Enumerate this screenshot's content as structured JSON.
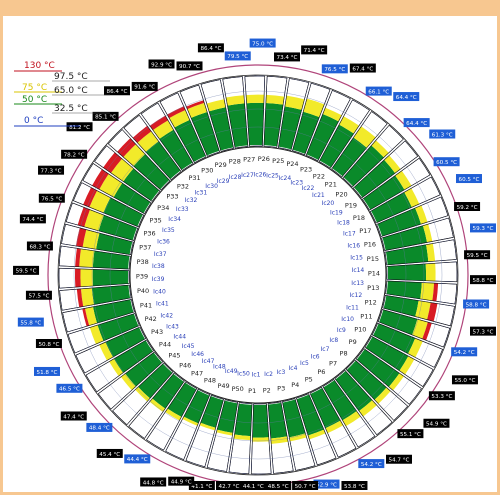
{
  "legend": {
    "scale": [
      {
        "label": "130 °C",
        "color": "#c1121f"
      },
      {
        "label": "75 °C",
        "color": "#d9c400"
      },
      {
        "label": "50 °C",
        "color": "#1a8a1a"
      },
      {
        "label": "0 °C",
        "color": "#1f3fbf"
      }
    ],
    "readouts": [
      "97.5 °C",
      "65.0 °C",
      "32.5 °C"
    ]
  },
  "colors": {
    "hot": "#d81b24",
    "warm": "#f2ea2a",
    "ok": "#0a8a2a",
    "cold_tag": "#1f5fd6",
    "dark_tag": "#000000",
    "ring_pink": "#b0447a",
    "grid_blue": "#2a3fb8"
  },
  "inner_labels": {
    "P": [
      "P1",
      "P2",
      "P3",
      "P4",
      "P5",
      "P6",
      "P7",
      "P8",
      "P9",
      "P10",
      "P11",
      "P12",
      "P13",
      "P14",
      "P15",
      "P16",
      "P17",
      "P18",
      "P19",
      "P20",
      "P21",
      "P22",
      "P23",
      "P24",
      "P25",
      "P26",
      "P27",
      "P28",
      "P29",
      "P30",
      "P31",
      "P32",
      "P33",
      "P34",
      "P35",
      "P36",
      "P37",
      "P38",
      "P39",
      "P40",
      "P41",
      "P42",
      "P43",
      "P44",
      "P45",
      "P46",
      "P47",
      "P48",
      "P49",
      "P50"
    ],
    "Ic": [
      "Ic1",
      "Ic2",
      "Ic3",
      "Ic4",
      "Ic5",
      "Ic6",
      "Ic7",
      "Ic8",
      "Ic9",
      "Ic10",
      "Ic11",
      "Ic12",
      "Ic13",
      "Ic14",
      "Ic15",
      "Ic16",
      "Ic17",
      "Ic18",
      "Ic19",
      "Ic20",
      "Ic21",
      "Ic22",
      "Ic23",
      "Ic24",
      "Ic25",
      "Ic26",
      "Ic27",
      "Ic28",
      "Ic29",
      "Ic30",
      "Ic31",
      "Ic32",
      "Ic33",
      "Ic34",
      "Ic35",
      "Ic36",
      "Ic37",
      "Ic38",
      "Ic39",
      "Ic40",
      "Ic41",
      "Ic42",
      "Ic43",
      "Ic44",
      "Ic45",
      "Ic46",
      "Ic47",
      "Ic48",
      "Ic49",
      "Ic50"
    ]
  },
  "outer_tags": [
    {
      "label": "75.0 °C",
      "kind": "cold"
    },
    {
      "label": "73.4 °C",
      "kind": "dark"
    },
    {
      "label": "71.4 °C",
      "kind": "dark"
    },
    {
      "label": "76.5 °C",
      "kind": "cold"
    },
    {
      "label": "67.4 °C",
      "kind": "dark"
    },
    {
      "label": "66.1 °C",
      "kind": "cold"
    },
    {
      "label": "64.4 °C",
      "kind": "cold"
    },
    {
      "label": "64.4 °C",
      "kind": "cold"
    },
    {
      "label": "61.3 °C",
      "kind": "cold"
    },
    {
      "label": "60.5 °C",
      "kind": "cold"
    },
    {
      "label": "60.5 °C",
      "kind": "cold"
    },
    {
      "label": "59.2 °C",
      "kind": "dark"
    },
    {
      "label": "59.3 °C",
      "kind": "cold"
    },
    {
      "label": "59.5 °C",
      "kind": "dark"
    },
    {
      "label": "58.8 °C",
      "kind": "dark"
    },
    {
      "label": "58.8 °C",
      "kind": "cold"
    },
    {
      "label": "57.3 °C",
      "kind": "dark"
    },
    {
      "label": "54.2 °C",
      "kind": "cold"
    },
    {
      "label": "55.0 °C",
      "kind": "dark"
    },
    {
      "label": "53.3 °C",
      "kind": "dark"
    },
    {
      "label": "54.9 °C",
      "kind": "dark"
    },
    {
      "label": "55.1 °C",
      "kind": "dark"
    },
    {
      "label": "54.7 °C",
      "kind": "dark"
    },
    {
      "label": "54.2 °C",
      "kind": "cold"
    },
    {
      "label": "53.8 °C",
      "kind": "dark"
    },
    {
      "label": "52.9 °C",
      "kind": "cold"
    },
    {
      "label": "50.7 °C",
      "kind": "dark"
    },
    {
      "label": "48.5 °C",
      "kind": "dark"
    },
    {
      "label": "44.1 °C",
      "kind": "dark"
    },
    {
      "label": "42.7 °C",
      "kind": "dark"
    },
    {
      "label": "41.1 °C",
      "kind": "dark"
    },
    {
      "label": "44.9 °C",
      "kind": "dark"
    },
    {
      "label": "44.8 °C",
      "kind": "dark"
    },
    {
      "label": "44.4 °C",
      "kind": "cold"
    },
    {
      "label": "45.4 °C",
      "kind": "dark"
    },
    {
      "label": "48.4 °C",
      "kind": "cold"
    },
    {
      "label": "47.4 °C",
      "kind": "dark"
    },
    {
      "label": "46.5 °C",
      "kind": "cold"
    },
    {
      "label": "51.8 °C",
      "kind": "cold"
    },
    {
      "label": "50.8 °C",
      "kind": "dark"
    },
    {
      "label": "55.8 °C",
      "kind": "cold"
    },
    {
      "label": "57.5 °C",
      "kind": "dark"
    },
    {
      "label": "59.5 °C",
      "kind": "dark"
    },
    {
      "label": "68.3 °C",
      "kind": "dark"
    },
    {
      "label": "74.4 °C",
      "kind": "dark"
    },
    {
      "label": "76.5 °C",
      "kind": "dark"
    },
    {
      "label": "77.3 °C",
      "kind": "dark"
    },
    {
      "label": "78.2 °C",
      "kind": "dark"
    },
    {
      "label": "81.2 °C",
      "kind": "dark"
    },
    {
      "label": "85.1 °C",
      "kind": "dark"
    },
    {
      "label": "86.4 °C",
      "kind": "dark"
    },
    {
      "label": "91.6 °C",
      "kind": "dark"
    },
    {
      "label": "92.9 °C",
      "kind": "dark"
    },
    {
      "label": "90.7 °C",
      "kind": "dark"
    },
    {
      "label": "86.4 °C",
      "kind": "dark"
    },
    {
      "label": "79.5 °C",
      "kind": "cold"
    }
  ],
  "segment_levels": [
    {
      "green": 0.62,
      "yellow": 0.12,
      "red": 0.0
    },
    {
      "green": 0.6,
      "yellow": 0.16,
      "red": 0.0
    },
    {
      "green": 0.58,
      "yellow": 0.2,
      "red": 0.0
    },
    {
      "green": 0.64,
      "yellow": 0.1,
      "red": 0.0
    },
    {
      "green": 0.6,
      "yellow": 0.14,
      "red": 0.0
    },
    {
      "green": 0.55,
      "yellow": 0.2,
      "red": 0.0
    },
    {
      "green": 0.62,
      "yellow": 0.1,
      "red": 0.0
    },
    {
      "green": 0.6,
      "yellow": 0.1,
      "red": 0.0
    },
    {
      "green": 0.58,
      "yellow": 0.12,
      "red": 0.0
    },
    {
      "green": 0.56,
      "yellow": 0.12,
      "red": 0.0
    },
    {
      "green": 0.6,
      "yellow": 0.1,
      "red": 0.0
    },
    {
      "green": 0.62,
      "yellow": 0.08,
      "red": 0.0
    },
    {
      "green": 0.6,
      "yellow": 0.1,
      "red": 0.0
    },
    {
      "green": 0.56,
      "yellow": 0.14,
      "red": 0.0
    },
    {
      "green": 0.5,
      "yellow": 0.18,
      "red": 0.06
    },
    {
      "green": 0.48,
      "yellow": 0.18,
      "red": 0.1
    },
    {
      "green": 0.52,
      "yellow": 0.16,
      "red": 0.06
    },
    {
      "green": 0.58,
      "yellow": 0.12,
      "red": 0.0
    },
    {
      "green": 0.6,
      "yellow": 0.1,
      "red": 0.0
    },
    {
      "green": 0.62,
      "yellow": 0.08,
      "red": 0.0
    },
    {
      "green": 0.6,
      "yellow": 0.08,
      "red": 0.0
    },
    {
      "green": 0.58,
      "yellow": 0.1,
      "red": 0.0
    },
    {
      "green": 0.56,
      "yellow": 0.1,
      "red": 0.0
    },
    {
      "green": 0.55,
      "yellow": 0.08,
      "red": 0.0
    },
    {
      "green": 0.56,
      "yellow": 0.06,
      "red": 0.0
    },
    {
      "green": 0.52,
      "yellow": 0.06,
      "red": 0.0
    },
    {
      "green": 0.5,
      "yellow": 0.08,
      "red": 0.0
    },
    {
      "green": 0.48,
      "yellow": 0.06,
      "red": 0.0
    },
    {
      "green": 0.46,
      "yellow": 0.06,
      "red": 0.0
    },
    {
      "green": 0.44,
      "yellow": 0.04,
      "red": 0.0
    },
    {
      "green": 0.42,
      "yellow": 0.04,
      "red": 0.0
    },
    {
      "green": 0.44,
      "yellow": 0.04,
      "red": 0.0
    },
    {
      "green": 0.46,
      "yellow": 0.06,
      "red": 0.0
    },
    {
      "green": 0.48,
      "yellow": 0.06,
      "red": 0.0
    },
    {
      "green": 0.5,
      "yellow": 0.06,
      "red": 0.0
    },
    {
      "green": 0.52,
      "yellow": 0.08,
      "red": 0.0
    },
    {
      "green": 0.54,
      "yellow": 0.08,
      "red": 0.0
    },
    {
      "green": 0.54,
      "yellow": 0.1,
      "red": 0.0
    },
    {
      "green": 0.56,
      "yellow": 0.12,
      "red": 0.0
    },
    {
      "green": 0.56,
      "yellow": 0.12,
      "red": 0.04
    },
    {
      "green": 0.54,
      "yellow": 0.16,
      "red": 0.06
    },
    {
      "green": 0.52,
      "yellow": 0.18,
      "red": 0.08
    },
    {
      "green": 0.52,
      "yellow": 0.2,
      "red": 0.06
    },
    {
      "green": 0.5,
      "yellow": 0.2,
      "red": 0.1
    },
    {
      "green": 0.52,
      "yellow": 0.22,
      "red": 0.1
    },
    {
      "green": 0.54,
      "yellow": 0.22,
      "red": 0.1
    },
    {
      "green": 0.5,
      "yellow": 0.24,
      "red": 0.12
    },
    {
      "green": 0.5,
      "yellow": 0.22,
      "red": 0.14
    },
    {
      "green": 0.52,
      "yellow": 0.2,
      "red": 0.12
    },
    {
      "green": 0.54,
      "yellow": 0.18,
      "red": 0.1
    },
    {
      "green": 0.56,
      "yellow": 0.16,
      "red": 0.08
    },
    {
      "green": 0.58,
      "yellow": 0.16,
      "red": 0.06
    },
    {
      "green": 0.6,
      "yellow": 0.14,
      "red": 0.04
    },
    {
      "green": 0.6,
      "yellow": 0.12,
      "red": 0.0
    },
    {
      "green": 0.62,
      "yellow": 0.12,
      "red": 0.0
    },
    {
      "green": 0.62,
      "yellow": 0.12,
      "red": 0.0
    }
  ]
}
